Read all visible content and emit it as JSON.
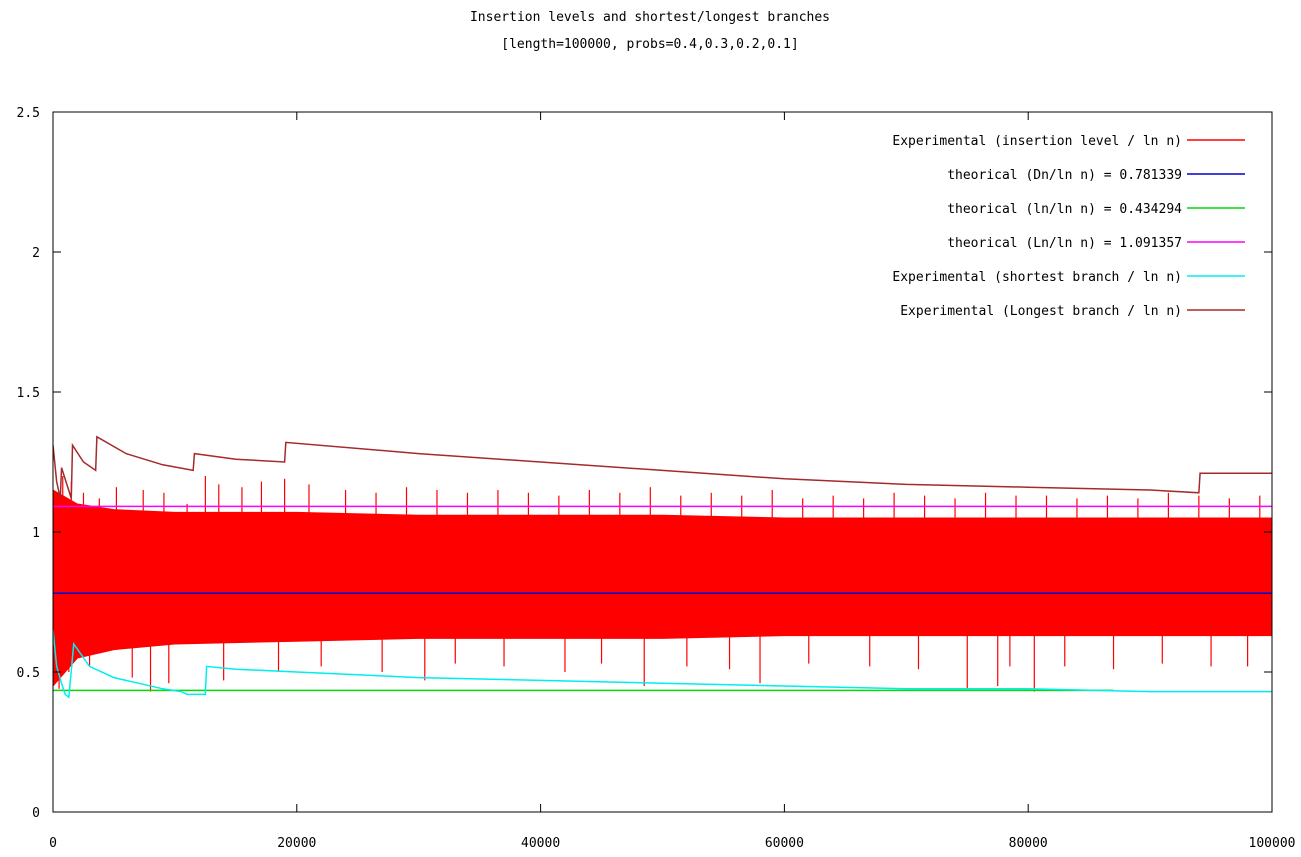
{
  "chart_data": {
    "type": "line",
    "title": "Insertion levels and shortest/longest branches",
    "subtitle": "[length=100000, probs=0.4,0.3,0.2,0.1]",
    "xlabel": "",
    "ylabel": "",
    "xlim": [
      0,
      100000
    ],
    "ylim": [
      0,
      2.5
    ],
    "xticks": [
      0,
      20000,
      40000,
      60000,
      80000,
      100000
    ],
    "xtick_labels": [
      "0",
      "20000",
      "40000",
      "60000",
      "80000",
      "100000"
    ],
    "yticks": [
      0,
      0.5,
      1,
      1.5,
      2,
      2.5
    ],
    "ytick_labels": [
      "0",
      "0.5",
      "1",
      "1.5",
      "2",
      "2.5"
    ],
    "grid": false,
    "legend_position": "top-right",
    "series": [
      {
        "name": "Experimental (insertion level / ln n)",
        "color": "#ff0000",
        "kind": "band",
        "x": [
          0,
          2000,
          5000,
          10000,
          20000,
          30000,
          40000,
          50000,
          60000,
          70000,
          80000,
          90000,
          100000
        ],
        "low": [
          0.45,
          0.55,
          0.58,
          0.6,
          0.61,
          0.62,
          0.62,
          0.62,
          0.63,
          0.63,
          0.63,
          0.63,
          0.63
        ],
        "high": [
          1.15,
          1.1,
          1.08,
          1.07,
          1.07,
          1.06,
          1.06,
          1.06,
          1.05,
          1.05,
          1.05,
          1.05,
          1.05
        ],
        "spikes": [
          [
            800,
            1.2
          ],
          [
            1500,
            1.18
          ],
          [
            2500,
            1.14
          ],
          [
            3800,
            1.12
          ],
          [
            5200,
            1.16
          ],
          [
            7400,
            1.15
          ],
          [
            9100,
            1.14
          ],
          [
            11000,
            1.1
          ],
          [
            12500,
            1.2
          ],
          [
            13600,
            1.17
          ],
          [
            15500,
            1.16
          ],
          [
            17100,
            1.18
          ],
          [
            19000,
            1.19
          ],
          [
            21000,
            1.17
          ],
          [
            24000,
            1.15
          ],
          [
            26500,
            1.14
          ],
          [
            29000,
            1.16
          ],
          [
            31500,
            1.15
          ],
          [
            34000,
            1.14
          ],
          [
            36500,
            1.15
          ],
          [
            39000,
            1.14
          ],
          [
            41500,
            1.13
          ],
          [
            44000,
            1.15
          ],
          [
            46500,
            1.14
          ],
          [
            49000,
            1.16
          ],
          [
            51500,
            1.13
          ],
          [
            54000,
            1.14
          ],
          [
            56500,
            1.13
          ],
          [
            59000,
            1.15
          ],
          [
            61500,
            1.12
          ],
          [
            64000,
            1.13
          ],
          [
            66500,
            1.12
          ],
          [
            69000,
            1.14
          ],
          [
            71500,
            1.13
          ],
          [
            74000,
            1.12
          ],
          [
            76500,
            1.14
          ],
          [
            79000,
            1.13
          ],
          [
            81500,
            1.13
          ],
          [
            84000,
            1.12
          ],
          [
            86500,
            1.13
          ],
          [
            89000,
            1.12
          ],
          [
            91500,
            1.14
          ],
          [
            94000,
            1.13
          ],
          [
            96500,
            1.12
          ],
          [
            99000,
            1.13
          ]
        ],
        "dips": [
          [
            500,
            0.44
          ],
          [
            1300,
            0.5
          ],
          [
            3000,
            0.52
          ],
          [
            6500,
            0.48
          ],
          [
            8000,
            0.43
          ],
          [
            9500,
            0.46
          ],
          [
            14000,
            0.47
          ],
          [
            18500,
            0.5
          ],
          [
            22000,
            0.52
          ],
          [
            27000,
            0.5
          ],
          [
            30500,
            0.47
          ],
          [
            33000,
            0.53
          ],
          [
            37000,
            0.52
          ],
          [
            42000,
            0.5
          ],
          [
            45000,
            0.53
          ],
          [
            48500,
            0.45
          ],
          [
            52000,
            0.52
          ],
          [
            55500,
            0.51
          ],
          [
            58000,
            0.46
          ],
          [
            62000,
            0.53
          ],
          [
            67000,
            0.52
          ],
          [
            71000,
            0.51
          ],
          [
            75000,
            0.44
          ],
          [
            77500,
            0.45
          ],
          [
            78500,
            0.52
          ],
          [
            80500,
            0.43
          ],
          [
            83000,
            0.52
          ],
          [
            87000,
            0.51
          ],
          [
            91000,
            0.53
          ],
          [
            95000,
            0.52
          ],
          [
            98000,
            0.52
          ]
        ]
      },
      {
        "name": "theorical (Dn/ln n) = 0.781339",
        "color": "#0000cc",
        "x": [
          0,
          100000
        ],
        "y": [
          0.781339,
          0.781339
        ]
      },
      {
        "name": "theorical (ln/ln n) = 0.434294",
        "color": "#00dd00",
        "x": [
          0,
          87000
        ],
        "y": [
          0.434294,
          0.434294
        ]
      },
      {
        "name": "theorical (Ln/ln n) = 1.091357",
        "color": "#ff00ff",
        "x": [
          0,
          100000
        ],
        "y": [
          1.091357,
          1.091357
        ]
      },
      {
        "name": "Experimental (shortest branch / ln n)",
        "color": "#00eeee",
        "x": [
          0,
          300,
          700,
          1000,
          1300,
          1700,
          3000,
          5000,
          7000,
          9000,
          10500,
          11000,
          12500,
          12600,
          15000,
          20000,
          30000,
          40000,
          50000,
          60000,
          70000,
          75000,
          80000,
          90000,
          100000
        ],
        "y": [
          0.65,
          0.52,
          0.46,
          0.42,
          0.41,
          0.6,
          0.52,
          0.48,
          0.46,
          0.44,
          0.43,
          0.42,
          0.42,
          0.52,
          0.51,
          0.5,
          0.48,
          0.47,
          0.46,
          0.45,
          0.44,
          0.44,
          0.44,
          0.43,
          0.43
        ]
      },
      {
        "name": "Experimental (Longest branch / ln n)",
        "color": "#a52a2a",
        "x": [
          0,
          300,
          600,
          700,
          1500,
          1600,
          2500,
          3500,
          3600,
          6000,
          9000,
          11500,
          11600,
          15000,
          19000,
          19100,
          30000,
          40000,
          50000,
          60000,
          70000,
          80000,
          90000,
          94000,
          94100,
          100000
        ],
        "y": [
          1.31,
          1.18,
          1.12,
          1.23,
          1.12,
          1.31,
          1.25,
          1.22,
          1.34,
          1.28,
          1.24,
          1.22,
          1.28,
          1.26,
          1.25,
          1.32,
          1.28,
          1.25,
          1.22,
          1.19,
          1.17,
          1.16,
          1.15,
          1.14,
          1.21,
          1.21
        ]
      }
    ]
  }
}
